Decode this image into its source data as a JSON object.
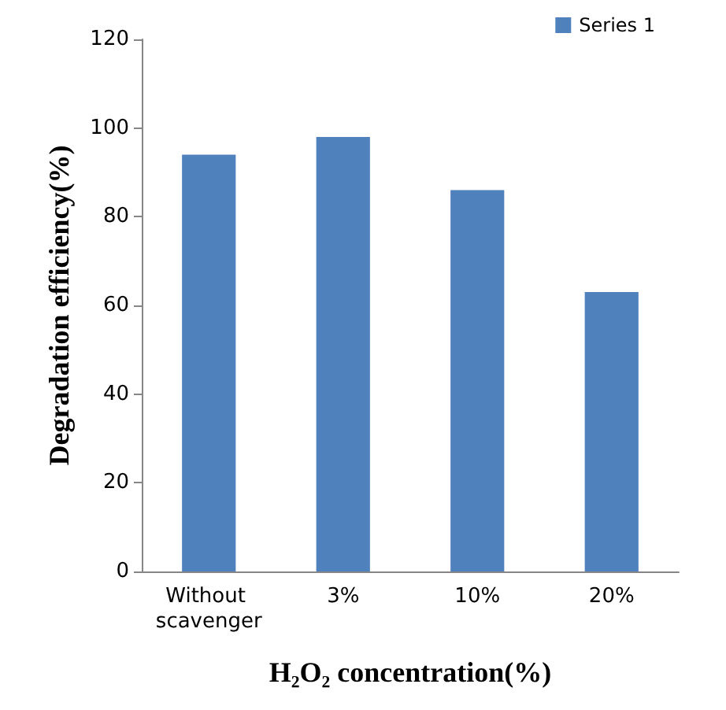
{
  "chart_data": {
    "type": "bar",
    "xlabel": "H₂O₂ concentration(%)",
    "ylabel": "Degradation efficiency(%)",
    "categories": [
      "Without scavenger",
      "3%",
      "10%",
      "20%"
    ],
    "series": [
      {
        "name": "Series 1",
        "color": "#4f81bd",
        "values": [
          94,
          98,
          86,
          63
        ]
      }
    ],
    "ylim": [
      0,
      120
    ],
    "yticks": [
      0,
      20,
      40,
      60,
      80,
      100,
      120
    ],
    "grid": false,
    "legend": "top right"
  }
}
